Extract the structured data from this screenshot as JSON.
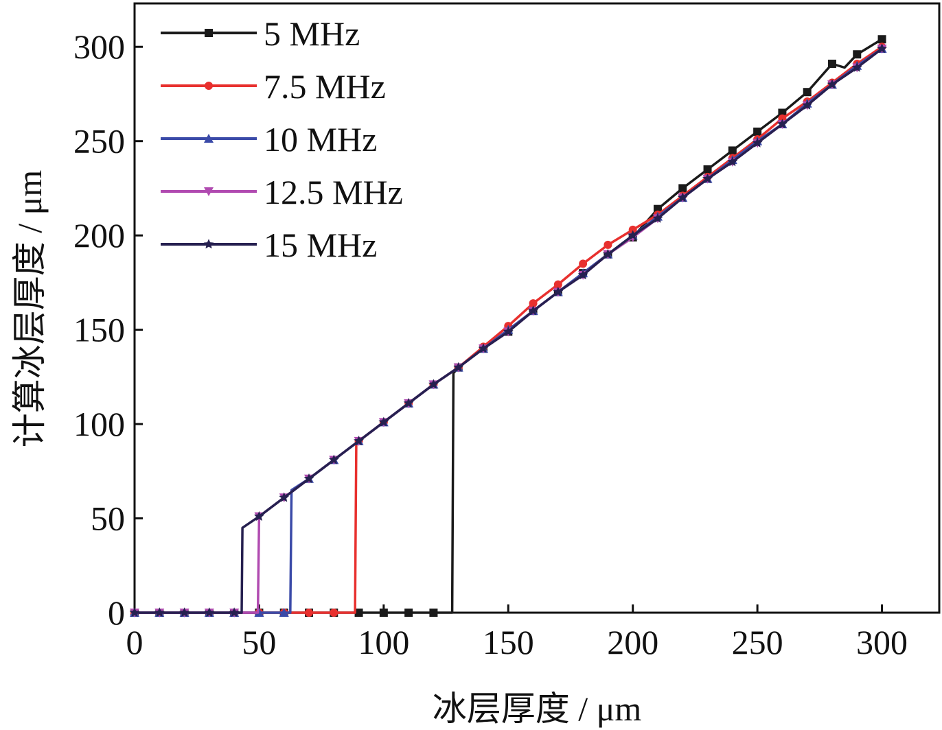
{
  "chart_data": {
    "type": "line",
    "title": "",
    "xlabel": "冰层厚度 / μm",
    "ylabel": "计算冰层厚度 / μm",
    "xlim": [
      0,
      323
    ],
    "ylim": [
      0,
      323
    ],
    "xticks": [
      0,
      50,
      100,
      150,
      200,
      250,
      300
    ],
    "yticks": [
      0,
      50,
      100,
      150,
      200,
      250,
      300
    ],
    "grid": false,
    "legend_position": "top-left",
    "series": [
      {
        "name": "5 MHz",
        "color": "#1a1a1a",
        "marker": "square",
        "x": [
          0,
          10,
          20,
          30,
          40,
          50,
          60,
          70,
          80,
          90,
          100,
          110,
          120,
          127.5,
          128,
          130,
          140,
          150,
          160,
          170,
          180,
          190,
          200,
          210,
          220,
          230,
          240,
          250,
          260,
          270,
          280,
          285,
          290,
          300
        ],
        "y": [
          0,
          0,
          0,
          0,
          0,
          0,
          0,
          0,
          0,
          0,
          0,
          0,
          0,
          0,
          127,
          130,
          140,
          149,
          160,
          170,
          180,
          190,
          199,
          214,
          225,
          235,
          245,
          255,
          265,
          276,
          291,
          289,
          296,
          304
        ]
      },
      {
        "name": "7.5 MHz",
        "color": "#e8302e",
        "marker": "circle",
        "x": [
          0,
          10,
          20,
          30,
          40,
          50,
          60,
          70,
          80,
          88.5,
          89,
          90,
          100,
          110,
          120,
          130,
          140,
          150,
          160,
          170,
          180,
          190,
          200,
          210,
          220,
          230,
          240,
          250,
          260,
          270,
          280,
          290,
          300
        ],
        "y": [
          0,
          0,
          0,
          0,
          0,
          0,
          0,
          0,
          0,
          0,
          89,
          91,
          101,
          111,
          121,
          130,
          141,
          152,
          164,
          174,
          185,
          195,
          203,
          211,
          221,
          231,
          241,
          251,
          262,
          271,
          281,
          291,
          300
        ]
      },
      {
        "name": "10 MHz",
        "color": "#3a4aa8",
        "marker": "triangle-up",
        "x": [
          0,
          10,
          20,
          30,
          40,
          50,
          60,
          62.5,
          63,
          70,
          80,
          90,
          100,
          110,
          120,
          130,
          140,
          150,
          160,
          170,
          180,
          190,
          200,
          210,
          220,
          230,
          240,
          250,
          260,
          270,
          280,
          290,
          300
        ],
        "y": [
          0,
          0,
          0,
          0,
          0,
          0,
          0,
          0,
          65,
          71,
          81,
          91,
          101,
          111,
          121,
          130,
          140,
          150,
          160,
          170,
          180,
          190,
          200,
          210,
          220,
          230,
          240,
          250,
          259,
          270,
          280,
          290,
          299
        ]
      },
      {
        "name": "12.5 MHz",
        "color": "#b04ab0",
        "marker": "triangle-down",
        "x": [
          0,
          10,
          20,
          30,
          40,
          49.5,
          50,
          60,
          70,
          80,
          90,
          100,
          110,
          120,
          130,
          140,
          150,
          160,
          170,
          180,
          190,
          200,
          210,
          220,
          230,
          240,
          250,
          260,
          270,
          280,
          290,
          300
        ],
        "y": [
          0,
          0,
          0,
          0,
          0,
          0,
          51,
          61,
          71,
          81,
          91,
          101,
          111,
          121,
          130,
          140,
          149,
          160,
          170,
          179,
          190,
          199,
          209,
          220,
          230,
          239,
          249,
          259,
          269,
          280,
          289,
          299
        ]
      },
      {
        "name": "15 MHz",
        "color": "#262050",
        "marker": "star",
        "x": [
          0,
          10,
          20,
          30,
          40,
          43,
          43.3,
          50,
          60,
          70,
          80,
          90,
          100,
          110,
          120,
          130,
          140,
          150,
          160,
          170,
          180,
          190,
          200,
          210,
          220,
          230,
          240,
          250,
          260,
          270,
          280,
          290,
          300
        ],
        "y": [
          0,
          0,
          0,
          0,
          0,
          0,
          45,
          51,
          61,
          71,
          81,
          91,
          101,
          111,
          121,
          130,
          140,
          149,
          160,
          170,
          179,
          190,
          200,
          209,
          220,
          230,
          239,
          249,
          259,
          269,
          280,
          289,
          299
        ]
      }
    ]
  }
}
